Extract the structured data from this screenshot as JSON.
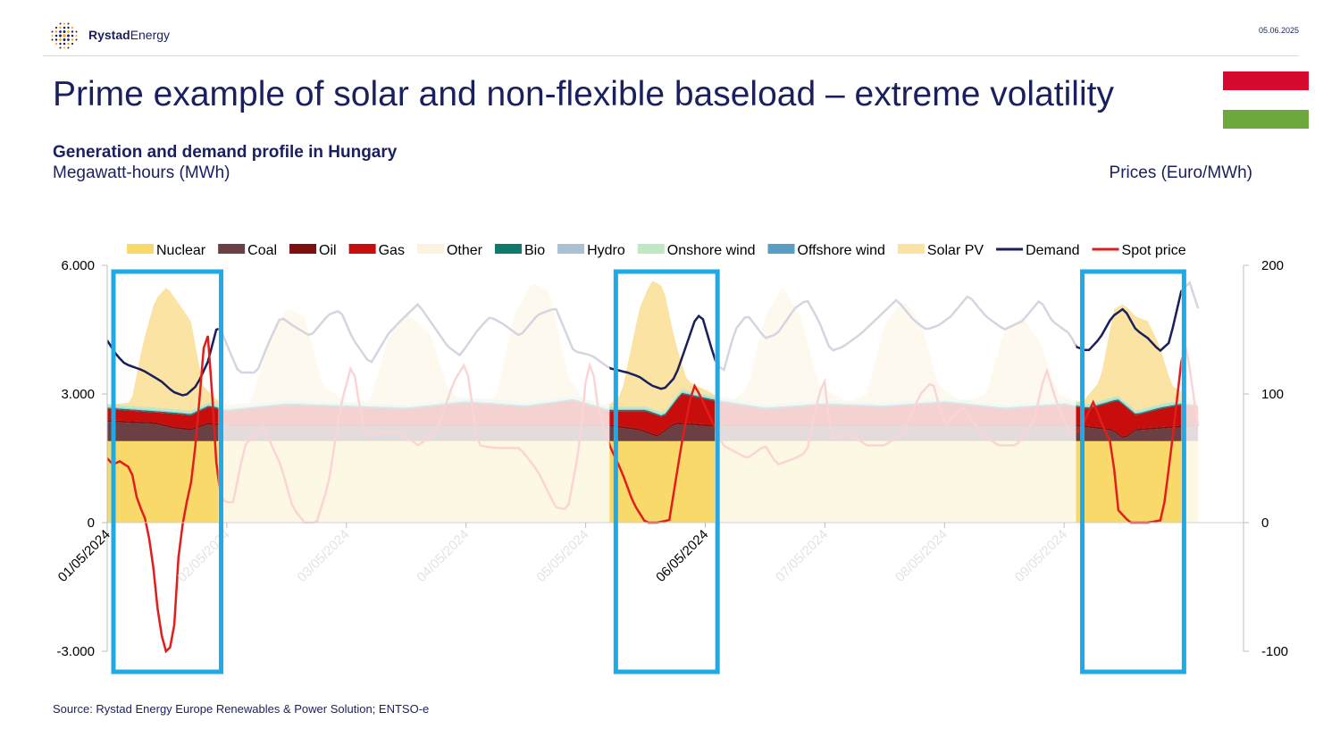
{
  "header": {
    "brand_bold": "Rystad",
    "brand_regular": "Energy",
    "date": "05.06.2025"
  },
  "title": "Prime example of solar and non-flexible baseload – extreme volatility",
  "subtitle": "Generation and demand profile in Hungary",
  "left_unit": "Megawatt-hours (MWh)",
  "right_unit": "Prices (Euro/MWh)",
  "source": "Source: Rystad Energy Europe Renewables & Power Solution; ENTSO-e",
  "flag_colors": [
    "#d6092f",
    "#ffffff",
    "#6ea83d"
  ],
  "chart_data": {
    "type": "area",
    "x_tick_labels": [
      "01/05/2024",
      "02/05/2024",
      "03/05/2024",
      "04/05/2024",
      "05/05/2024",
      "06/05/2024",
      "07/05/2024",
      "08/05/2024",
      "09/05/2024"
    ],
    "y_left": {
      "ticks": [
        "-3.000",
        "0",
        "3.000",
        "6.000"
      ],
      "values": [
        -3000,
        0,
        3000,
        6000
      ],
      "range": [
        -3000,
        6000
      ]
    },
    "y_right": {
      "ticks": [
        "-100",
        "0",
        "100",
        "200"
      ],
      "values": [
        -100,
        0,
        100,
        200
      ],
      "range": [
        -100,
        200
      ]
    },
    "x_range_days": [
      0,
      9.5
    ],
    "legend": [
      {
        "name": "Nuclear",
        "color": "#f9d96a",
        "kind": "area"
      },
      {
        "name": "Coal",
        "color": "#6b4044",
        "kind": "area"
      },
      {
        "name": "Oil",
        "color": "#7d0f0f",
        "kind": "area"
      },
      {
        "name": "Gas",
        "color": "#c80d0d",
        "kind": "area"
      },
      {
        "name": "Other",
        "color": "#fdf1df",
        "kind": "area"
      },
      {
        "name": "Bio",
        "color": "#0e7a6e",
        "kind": "area"
      },
      {
        "name": "Hydro",
        "color": "#a9c1d3",
        "kind": "area"
      },
      {
        "name": "Onshore wind",
        "color": "#bfe8c3",
        "kind": "area"
      },
      {
        "name": "Offshore wind",
        "color": "#5b9ec4",
        "kind": "area"
      },
      {
        "name": "Solar PV",
        "color": "#fbe3a3",
        "kind": "area"
      },
      {
        "name": "Demand",
        "color": "#1a1f5e",
        "kind": "line"
      },
      {
        "name": "Spot price",
        "color": "#e21d1d",
        "kind": "line"
      }
    ],
    "highlight_windows_days": [
      [
        0,
        0.93
      ],
      [
        4.2,
        5.08
      ],
      [
        8.1,
        8.98
      ]
    ],
    "nuclear_mwh": 1900,
    "series_points": {
      "demand": [
        [
          0,
          4250
        ],
        [
          0.08,
          3900
        ],
        [
          0.15,
          3700
        ],
        [
          0.3,
          3550
        ],
        [
          0.45,
          3300
        ],
        [
          0.55,
          3050
        ],
        [
          0.65,
          2950
        ],
        [
          0.75,
          3200
        ],
        [
          0.85,
          3800
        ],
        [
          0.9,
          4400
        ],
        [
          0.93,
          4650
        ],
        [
          1.0,
          4150
        ],
        [
          1.1,
          3500
        ],
        [
          1.25,
          3500
        ],
        [
          1.35,
          4200
        ],
        [
          1.45,
          4800
        ],
        [
          1.55,
          4600
        ],
        [
          1.7,
          4350
        ],
        [
          1.85,
          4850
        ],
        [
          1.95,
          4950
        ],
        [
          2.05,
          4300
        ],
        [
          2.2,
          3700
        ],
        [
          2.35,
          4400
        ],
        [
          2.45,
          4700
        ],
        [
          2.6,
          5100
        ],
        [
          2.75,
          4500
        ],
        [
          2.85,
          4100
        ],
        [
          2.95,
          3900
        ],
        [
          3.1,
          4500
        ],
        [
          3.2,
          4800
        ],
        [
          3.3,
          4650
        ],
        [
          3.45,
          4350
        ],
        [
          3.6,
          4850
        ],
        [
          3.75,
          5000
        ],
        [
          3.9,
          4000
        ],
        [
          4.05,
          3900
        ],
        [
          4.2,
          3600
        ],
        [
          4.35,
          3500
        ],
        [
          4.45,
          3400
        ],
        [
          4.55,
          3200
        ],
        [
          4.65,
          3100
        ],
        [
          4.75,
          3400
        ],
        [
          4.85,
          4200
        ],
        [
          4.93,
          4850
        ],
        [
          4.98,
          4750
        ],
        [
          5.08,
          3800
        ],
        [
          5.15,
          3500
        ],
        [
          5.25,
          4500
        ],
        [
          5.35,
          4850
        ],
        [
          5.5,
          4300
        ],
        [
          5.6,
          4400
        ],
        [
          5.75,
          5000
        ],
        [
          5.85,
          5200
        ],
        [
          5.95,
          4700
        ],
        [
          6.05,
          4000
        ],
        [
          6.15,
          4100
        ],
        [
          6.3,
          4400
        ],
        [
          6.45,
          4800
        ],
        [
          6.6,
          5200
        ],
        [
          6.75,
          4700
        ],
        [
          6.85,
          4500
        ],
        [
          6.95,
          4600
        ],
        [
          7.05,
          4800
        ],
        [
          7.2,
          5300
        ],
        [
          7.35,
          4800
        ],
        [
          7.5,
          4500
        ],
        [
          7.65,
          4700
        ],
        [
          7.8,
          5200
        ],
        [
          7.9,
          4700
        ],
        [
          8.05,
          4400
        ],
        [
          8.1,
          4100
        ],
        [
          8.2,
          4000
        ],
        [
          8.3,
          4300
        ],
        [
          8.4,
          4800
        ],
        [
          8.5,
          5000
        ],
        [
          8.6,
          4500
        ],
        [
          8.7,
          4300
        ],
        [
          8.8,
          4000
        ],
        [
          8.88,
          4200
        ],
        [
          8.98,
          5400
        ],
        [
          9.05,
          5600
        ],
        [
          9.12,
          5000
        ]
      ],
      "spot_price": [
        [
          0,
          50
        ],
        [
          0.05,
          45
        ],
        [
          0.1,
          48
        ],
        [
          0.2,
          42
        ],
        [
          0.25,
          18
        ],
        [
          0.33,
          0
        ],
        [
          0.38,
          -30
        ],
        [
          0.43,
          -75
        ],
        [
          0.48,
          -100
        ],
        [
          0.52,
          -100
        ],
        [
          0.57,
          -75
        ],
        [
          0.6,
          -20
        ],
        [
          0.65,
          10
        ],
        [
          0.7,
          30
        ],
        [
          0.75,
          70
        ],
        [
          0.8,
          130
        ],
        [
          0.83,
          155
        ],
        [
          0.86,
          130
        ],
        [
          0.9,
          60
        ],
        [
          0.93,
          28
        ],
        [
          0.96,
          17
        ],
        [
          1.05,
          15
        ],
        [
          1.15,
          60
        ],
        [
          1.3,
          75
        ],
        [
          1.45,
          45
        ],
        [
          1.55,
          12
        ],
        [
          1.65,
          0
        ],
        [
          1.75,
          0
        ],
        [
          1.85,
          30
        ],
        [
          1.95,
          90
        ],
        [
          2.05,
          125
        ],
        [
          2.15,
          68
        ],
        [
          2.3,
          70
        ],
        [
          2.45,
          70
        ],
        [
          2.6,
          60
        ],
        [
          2.75,
          70
        ],
        [
          2.9,
          110
        ],
        [
          3.0,
          125
        ],
        [
          3.1,
          60
        ],
        [
          3.25,
          58
        ],
        [
          3.45,
          58
        ],
        [
          3.6,
          40
        ],
        [
          3.75,
          12
        ],
        [
          3.85,
          10
        ],
        [
          3.95,
          60
        ],
        [
          4.0,
          110
        ],
        [
          4.05,
          128
        ],
        [
          4.1,
          90
        ],
        [
          4.2,
          60
        ],
        [
          4.3,
          40
        ],
        [
          4.4,
          15
        ],
        [
          4.5,
          0
        ],
        [
          4.6,
          0
        ],
        [
          4.7,
          2
        ],
        [
          4.8,
          60
        ],
        [
          4.9,
          108
        ],
        [
          4.95,
          100
        ],
        [
          5.05,
          80
        ],
        [
          5.15,
          60
        ],
        [
          5.25,
          55
        ],
        [
          5.35,
          50
        ],
        [
          5.5,
          60
        ],
        [
          5.6,
          45
        ],
        [
          5.75,
          50
        ],
        [
          5.85,
          55
        ],
        [
          5.95,
          100
        ],
        [
          6.0,
          110
        ],
        [
          6.05,
          65
        ],
        [
          6.2,
          70
        ],
        [
          6.35,
          60
        ],
        [
          6.5,
          60
        ],
        [
          6.65,
          70
        ],
        [
          6.8,
          100
        ],
        [
          6.9,
          110
        ],
        [
          7.0,
          75
        ],
        [
          7.15,
          90
        ],
        [
          7.3,
          70
        ],
        [
          7.45,
          60
        ],
        [
          7.6,
          60
        ],
        [
          7.75,
          80
        ],
        [
          7.85,
          120
        ],
        [
          7.95,
          90
        ],
        [
          8.05,
          70
        ],
        [
          8.1,
          70
        ],
        [
          8.15,
          75
        ],
        [
          8.25,
          95
        ],
        [
          8.3,
          80
        ],
        [
          8.4,
          60
        ],
        [
          8.45,
          10
        ],
        [
          8.55,
          0
        ],
        [
          8.7,
          0
        ],
        [
          8.82,
          2
        ],
        [
          8.9,
          60
        ],
        [
          8.98,
          125
        ],
        [
          9.02,
          140
        ],
        [
          9.08,
          100
        ],
        [
          9.12,
          75
        ]
      ],
      "gas_top": [
        [
          0,
          2650
        ],
        [
          0.5,
          2550
        ],
        [
          0.7,
          2500
        ],
        [
          0.85,
          2700
        ],
        [
          1.0,
          2600
        ],
        [
          1.5,
          2750
        ],
        [
          2.0,
          2700
        ],
        [
          2.5,
          2650
        ],
        [
          3.0,
          2800
        ],
        [
          3.5,
          2700
        ],
        [
          3.9,
          2850
        ],
        [
          4.2,
          2600
        ],
        [
          4.5,
          2600
        ],
        [
          4.65,
          2450
        ],
        [
          4.8,
          3000
        ],
        [
          5.05,
          2850
        ],
        [
          5.5,
          2650
        ],
        [
          6.0,
          2750
        ],
        [
          6.5,
          2700
        ],
        [
          7.0,
          2800
        ],
        [
          7.5,
          2650
        ],
        [
          8.0,
          2750
        ],
        [
          8.2,
          2650
        ],
        [
          8.45,
          2850
        ],
        [
          8.6,
          2500
        ],
        [
          8.8,
          2650
        ],
        [
          9.0,
          2750
        ],
        [
          9.12,
          2700
        ]
      ],
      "coal_top": [
        [
          0,
          2350
        ],
        [
          0.4,
          2300
        ],
        [
          0.55,
          2200
        ],
        [
          0.7,
          2150
        ],
        [
          0.85,
          2300
        ],
        [
          1.0,
          2250
        ],
        [
          2.0,
          2250
        ],
        [
          3.0,
          2250
        ],
        [
          4.2,
          2250
        ],
        [
          4.45,
          2150
        ],
        [
          4.6,
          2000
        ],
        [
          4.75,
          2300
        ],
        [
          5.0,
          2250
        ],
        [
          6.0,
          2250
        ],
        [
          7.0,
          2250
        ],
        [
          8.1,
          2250
        ],
        [
          8.4,
          2150
        ],
        [
          8.5,
          1950
        ],
        [
          8.6,
          2150
        ],
        [
          9.12,
          2250
        ]
      ],
      "solar_top": [
        [
          0,
          2750
        ],
        [
          0.2,
          2800
        ],
        [
          0.3,
          4200
        ],
        [
          0.4,
          5200
        ],
        [
          0.5,
          5500
        ],
        [
          0.6,
          5100
        ],
        [
          0.7,
          4700
        ],
        [
          0.8,
          3200
        ],
        [
          0.9,
          2900
        ],
        [
          1.0,
          2750
        ],
        [
          1.2,
          2800
        ],
        [
          1.35,
          4200
        ],
        [
          1.5,
          5000
        ],
        [
          1.65,
          4800
        ],
        [
          1.8,
          3200
        ],
        [
          2.0,
          2800
        ],
        [
          2.2,
          2850
        ],
        [
          2.35,
          4300
        ],
        [
          2.5,
          4900
        ],
        [
          2.7,
          4400
        ],
        [
          2.85,
          3100
        ],
        [
          3.0,
          2800
        ],
        [
          3.25,
          2900
        ],
        [
          3.4,
          4800
        ],
        [
          3.55,
          5600
        ],
        [
          3.7,
          5400
        ],
        [
          3.85,
          3400
        ],
        [
          4.0,
          2800
        ],
        [
          4.2,
          2750
        ],
        [
          4.3,
          3000
        ],
        [
          4.45,
          5000
        ],
        [
          4.55,
          5650
        ],
        [
          4.65,
          5500
        ],
        [
          4.75,
          4200
        ],
        [
          4.85,
          3300
        ],
        [
          5.0,
          3100
        ],
        [
          5.2,
          2800
        ],
        [
          5.35,
          3100
        ],
        [
          5.5,
          4800
        ],
        [
          5.65,
          5500
        ],
        [
          5.8,
          4800
        ],
        [
          5.95,
          3200
        ],
        [
          6.2,
          2800
        ],
        [
          6.35,
          3000
        ],
        [
          6.5,
          4600
        ],
        [
          6.65,
          5200
        ],
        [
          6.8,
          4700
        ],
        [
          6.95,
          3200
        ],
        [
          7.15,
          2800
        ],
        [
          7.35,
          3000
        ],
        [
          7.5,
          4500
        ],
        [
          7.65,
          4800
        ],
        [
          7.8,
          4200
        ],
        [
          7.95,
          3000
        ],
        [
          8.15,
          2800
        ],
        [
          8.3,
          3300
        ],
        [
          8.42,
          5000
        ],
        [
          8.5,
          5100
        ],
        [
          8.6,
          4800
        ],
        [
          8.7,
          4700
        ],
        [
          8.8,
          4100
        ],
        [
          8.9,
          3200
        ],
        [
          9.12,
          2800
        ]
      ]
    }
  }
}
